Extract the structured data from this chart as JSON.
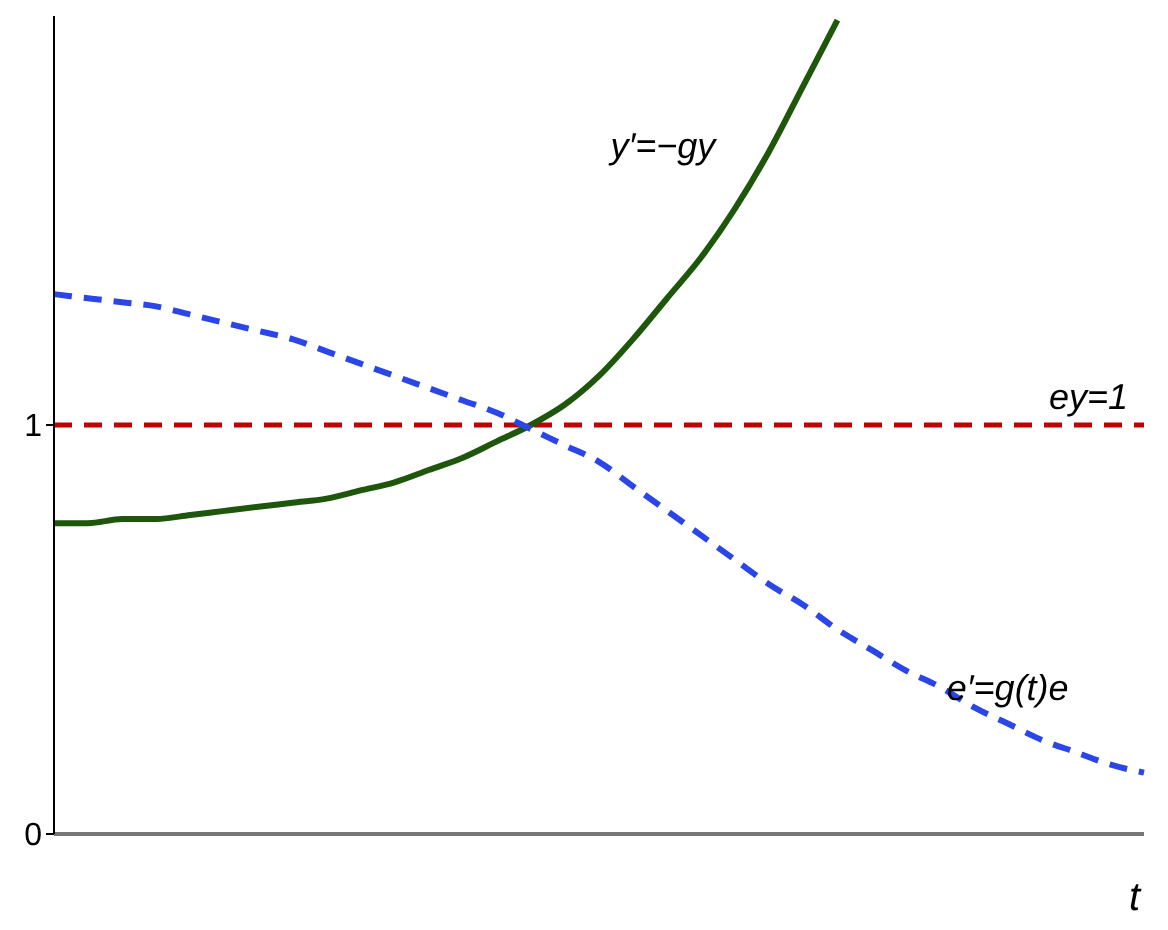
{
  "chart_data": {
    "type": "line",
    "xlabel": "t",
    "categories": [
      null,
      null,
      null,
      null,
      null,
      null,
      null,
      null,
      null,
      null,
      null,
      null,
      null,
      null,
      null,
      null,
      null,
      null,
      null,
      null,
      null,
      null,
      null,
      null,
      null,
      null,
      null,
      null,
      null,
      null,
      null,
      null,
      null
    ],
    "ylim": [
      0,
      2
    ],
    "yticks": [
      0,
      1
    ],
    "marker": "none",
    "series": [
      {
        "name": "y′=−gy",
        "color": "#1e560c",
        "line_style": "solid",
        "values": [
          0.76,
          0.76,
          0.77,
          0.77,
          0.78,
          0.79,
          0.8,
          0.81,
          0.82,
          0.84,
          0.86,
          0.89,
          0.92,
          0.96,
          1.0,
          1.05,
          1.12,
          1.21,
          1.31,
          1.41,
          1.53,
          1.67,
          1.83,
          1.99,
          null,
          null,
          null,
          null,
          null,
          null,
          null,
          null,
          null
        ]
      },
      {
        "name": "e′=g(t)e",
        "color": "#2a46e8",
        "line_style": "dashed",
        "values": [
          1.32,
          1.31,
          1.3,
          1.29,
          1.27,
          1.25,
          1.23,
          1.21,
          1.18,
          1.15,
          1.12,
          1.09,
          1.06,
          1.03,
          0.99,
          0.95,
          0.91,
          0.85,
          0.79,
          0.73,
          0.67,
          0.61,
          0.56,
          0.5,
          0.45,
          0.4,
          0.36,
          0.31,
          0.27,
          0.23,
          0.2,
          0.17,
          0.15
        ]
      }
    ],
    "ref_lines": [
      {
        "axis": "y",
        "value": 1,
        "label": "ey=1",
        "color": "#c00000",
        "line_style": "dashed"
      }
    ]
  }
}
